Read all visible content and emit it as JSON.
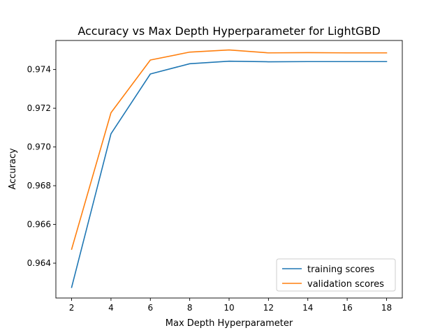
{
  "chart_data": {
    "type": "line",
    "title": "Accuracy vs Max Depth Hyperparameter for LightGBD",
    "xlabel": "Max Depth Hyperparameter",
    "ylabel": "Accuracy",
    "x": [
      2,
      4,
      6,
      8,
      10,
      12,
      14,
      16,
      18
    ],
    "xticks": [
      "2",
      "4",
      "6",
      "8",
      "10",
      "12",
      "14",
      "16",
      "18"
    ],
    "yticks": [
      "0.964",
      "0.966",
      "0.968",
      "0.970",
      "0.972",
      "0.974"
    ],
    "ytick_values": [
      0.964,
      0.966,
      0.968,
      0.97,
      0.972,
      0.974
    ],
    "xlim": [
      1.2,
      18.8
    ],
    "ylim": [
      0.9622,
      0.9755
    ],
    "grid": false,
    "legend_position": "lower-right",
    "series": [
      {
        "name": "training scores",
        "color": "#1f77b4",
        "values": [
          0.96275,
          0.97068,
          0.97377,
          0.9743,
          0.97443,
          0.9744,
          0.97441,
          0.97441,
          0.97441
        ]
      },
      {
        "name": "validation scores",
        "color": "#ff7f0e",
        "values": [
          0.96472,
          0.97177,
          0.97449,
          0.9749,
          0.97501,
          0.97486,
          0.97487,
          0.97486,
          0.97486
        ]
      }
    ]
  }
}
